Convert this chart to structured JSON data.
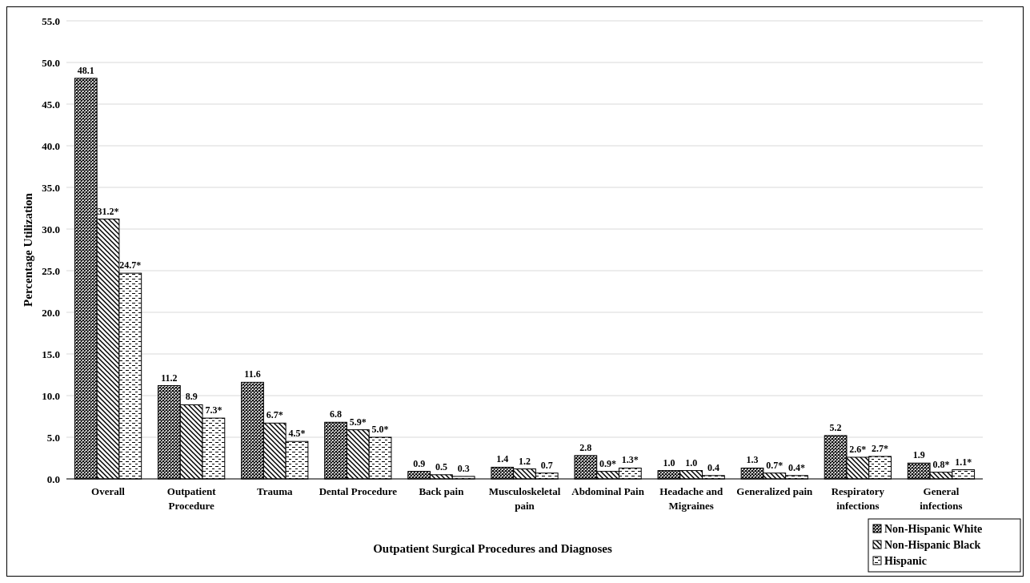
{
  "chart_data": {
    "type": "bar",
    "xlabel": "Outpatient Surgical Procedures and Diagnoses",
    "ylabel": "Percentage Utilization",
    "categories": [
      "Overall",
      "Outpatient Procedure",
      "Trauma",
      "Dental Procedure",
      "Back pain",
      "Musculoskeletal pain",
      "Abdominal Pain",
      "Headache and Migraines",
      "Generalized pain",
      "Respiratory infections",
      "General infections"
    ],
    "series": [
      {
        "name": "Non-Hispanic White",
        "color": "#000000",
        "values": [
          48.1,
          11.2,
          11.6,
          6.8,
          0.9,
          1.4,
          2.8,
          1.0,
          1.3,
          5.2,
          1.9
        ],
        "value_labels": [
          "48.1",
          "11.2",
          "11.6",
          "6.8",
          "0.9",
          "1.4",
          "2.8",
          "1.0",
          "1.3",
          "5.2",
          "1.9"
        ]
      },
      {
        "name": "Non-Hispanic Black",
        "color": "#000000",
        "values": [
          31.2,
          8.9,
          6.7,
          5.9,
          0.5,
          1.2,
          0.9,
          1.0,
          0.7,
          2.6,
          0.8
        ],
        "value_labels": [
          "31.2*",
          "8.9",
          "6.7*",
          "5.9*",
          "0.5",
          "1.2",
          "0.9*",
          "1.0",
          "0.7*",
          "2.6*",
          "0.8*"
        ]
      },
      {
        "name": "Hispanic",
        "color": "#000000",
        "values": [
          24.7,
          7.3,
          4.5,
          5.0,
          0.3,
          0.7,
          1.3,
          0.4,
          0.4,
          2.7,
          1.1
        ],
        "value_labels": [
          "24.7*",
          "7.3*",
          "4.5*",
          "5.0*",
          "0.3",
          "0.7",
          "1.3*",
          "0.4",
          "0.4*",
          "2.7*",
          "1.1*"
        ]
      }
    ],
    "ylim": [
      0,
      55
    ],
    "yticks": [
      {
        "value": 0,
        "label": "0.0"
      },
      {
        "value": 5,
        "label": "5.0"
      },
      {
        "value": 10,
        "label": "10.0"
      },
      {
        "value": 15,
        "label": "15.0"
      },
      {
        "value": 20,
        "label": "20.0"
      },
      {
        "value": 25,
        "label": "25.0"
      },
      {
        "value": 30,
        "label": "30.0"
      },
      {
        "value": 35,
        "label": "35.0"
      },
      {
        "value": 40,
        "label": "40.0"
      },
      {
        "value": 45,
        "label": "45.0"
      },
      {
        "value": 50,
        "label": "50.0"
      },
      {
        "value": 55,
        "label": "55.0"
      }
    ],
    "grid": "y",
    "legend": "bottom right"
  }
}
